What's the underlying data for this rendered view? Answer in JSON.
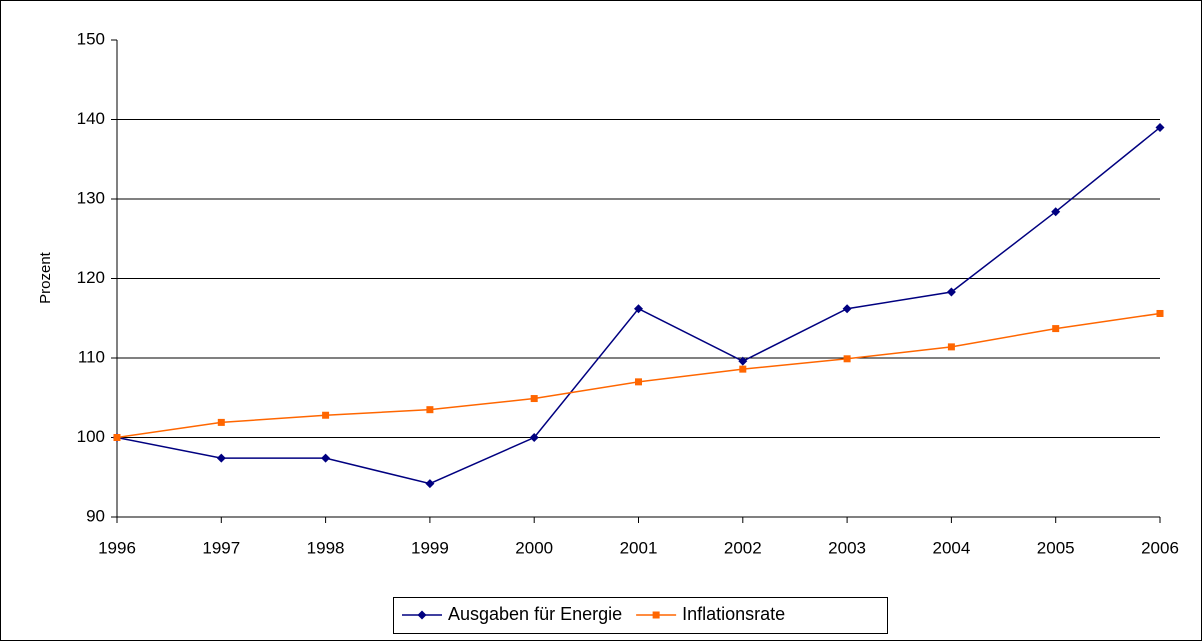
{
  "chart_data": {
    "type": "line",
    "y_label": "Prozent",
    "x": [
      1996,
      1997,
      1998,
      1999,
      2000,
      2001,
      2002,
      2003,
      2004,
      2005,
      2006
    ],
    "series": [
      {
        "name": "Ausgaben für Energie",
        "color": "#000080",
        "marker": "diamond",
        "values": [
          100,
          97.4,
          97.4,
          94.2,
          100,
          116.2,
          109.6,
          116.2,
          118.3,
          128.4,
          139
        ]
      },
      {
        "name": "Inflationsrate",
        "color": "#ff6600",
        "marker": "square",
        "values": [
          100,
          101.9,
          102.8,
          103.5,
          104.9,
          107,
          108.6,
          109.9,
          111.4,
          113.7,
          115.6
        ]
      }
    ],
    "xlim": [
      1996,
      2006
    ],
    "xticks": [
      1996,
      1997,
      1998,
      1999,
      2000,
      2001,
      2002,
      2003,
      2004,
      2005,
      2006
    ],
    "ylim": [
      90,
      150
    ],
    "yticks": [
      90,
      100,
      110,
      120,
      130,
      140,
      150
    ],
    "grid": true,
    "legend": "bottom"
  }
}
